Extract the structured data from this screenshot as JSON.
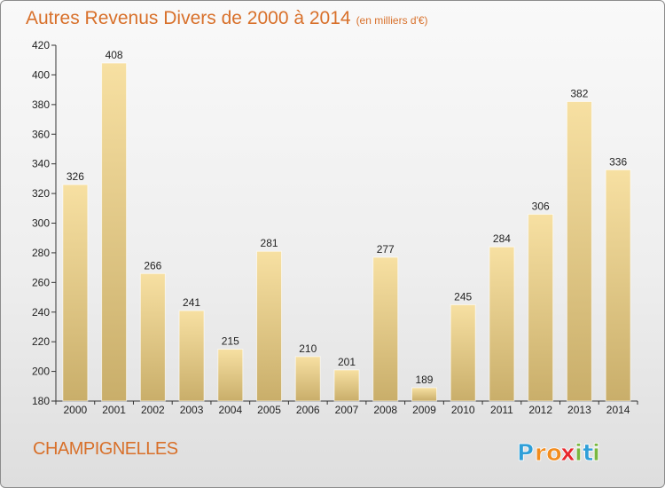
{
  "title": "Autres Revenus Divers de 2000 à 2014",
  "subtitle": "(en milliers d'€)",
  "commune": "CHAMPIGNELLES",
  "logo": {
    "text": "Proxiti",
    "letters": [
      {
        "char": "P",
        "color": "#2f9fd8"
      },
      {
        "char": "r",
        "color": "#f28c1e"
      },
      {
        "char": "o",
        "color": "#f28c1e"
      },
      {
        "char": "x",
        "color": "#e8262d"
      },
      {
        "char": "i",
        "color": "#7ab740"
      },
      {
        "char": "t",
        "color": "#2f9fd8"
      },
      {
        "char": "i",
        "color": "#7ab740"
      }
    ]
  },
  "colors": {
    "title": "#d8702a",
    "bar_top": "#f7e0a2",
    "bar_bottom": "#c9ae6a",
    "axis": "#333333"
  },
  "chart_data": {
    "type": "bar",
    "categories": [
      "2000",
      "2001",
      "2002",
      "2003",
      "2004",
      "2005",
      "2006",
      "2007",
      "2008",
      "2009",
      "2010",
      "2011",
      "2012",
      "2013",
      "2014"
    ],
    "values": [
      326,
      408,
      266,
      241,
      215,
      281,
      210,
      201,
      277,
      189,
      245,
      284,
      306,
      382,
      336
    ],
    "ylim": [
      180,
      420
    ],
    "yticks": [
      180,
      200,
      220,
      240,
      260,
      280,
      300,
      320,
      340,
      360,
      380,
      400,
      420
    ],
    "grid": false,
    "data_labels": true
  }
}
